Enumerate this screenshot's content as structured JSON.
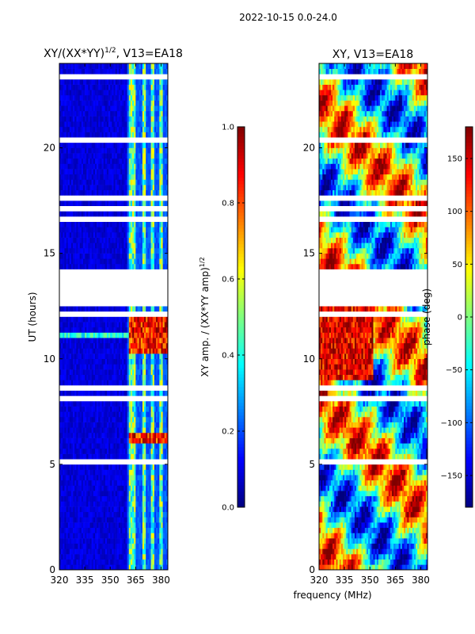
{
  "figure": {
    "suptitle": "2022-10-15 0.0-24.0",
    "shared_xlabel": "frequency (MHz)"
  },
  "colors": {
    "jet_stops": [
      "#00007f",
      "#0000ff",
      "#007fff",
      "#00ffff",
      "#7fff7f",
      "#ffff00",
      "#ff7f00",
      "#ff0000",
      "#7f0000"
    ],
    "gap": "#ffffff",
    "axis": "#000000"
  },
  "chart_data": [
    {
      "type": "heatmap",
      "name": "xy-amplitude",
      "title_main": "XY/(XX*YY)",
      "title_sup": "1/2",
      "title_suffix": ", V13=EA18",
      "xlabel": "",
      "ylabel": "UT (hours)",
      "xlim": [
        320,
        384
      ],
      "ylim": [
        0,
        24
      ],
      "xticks": [
        320,
        335,
        350,
        365,
        380
      ],
      "yticks": [
        0,
        5,
        10,
        15,
        20
      ],
      "bright_channel_bands_mhz": [
        [
          361,
          365
        ],
        [
          369,
          371
        ],
        [
          374,
          376
        ],
        [
          379,
          381
        ]
      ],
      "event_windows_ut": [
        [
          6.1,
          6.6
        ],
        [
          10.2,
          12.0
        ]
      ],
      "colorbar": {
        "label_main": "XY amp. / (XX*YY amp)",
        "label_sup": "1/2",
        "range": [
          0.0,
          1.0
        ],
        "ticks": [
          "0.0",
          "0.2",
          "0.4",
          "0.6",
          "0.8",
          "1.0"
        ],
        "tick_values": [
          0.0,
          0.2,
          0.4,
          0.6,
          0.8,
          1.0
        ]
      }
    },
    {
      "type": "heatmap",
      "name": "xy-phase",
      "title": "XY, V13=EA18",
      "xlabel": "",
      "ylabel": "",
      "xlim": [
        320,
        384
      ],
      "ylim": [
        0,
        24
      ],
      "xticks": [
        320,
        335,
        350,
        365,
        380
      ],
      "yticks": [
        0,
        5,
        10,
        15,
        20
      ],
      "colorbar": {
        "label": "phase (deg)",
        "range": [
          -180,
          180
        ],
        "ticks": [
          "−150",
          "−100",
          "−50",
          "0",
          "50",
          "100",
          "150"
        ],
        "tick_values": [
          -150,
          -100,
          -50,
          0,
          50,
          100,
          150
        ]
      }
    }
  ]
}
